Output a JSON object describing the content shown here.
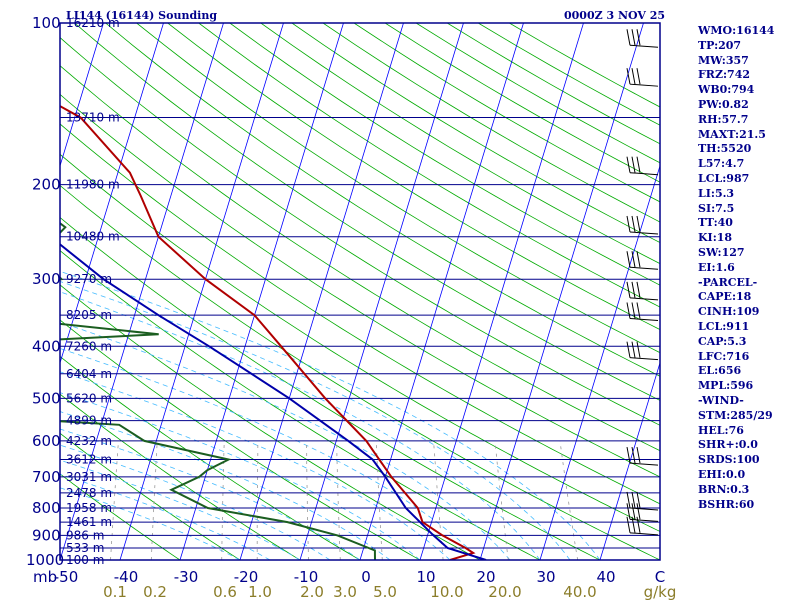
{
  "header": {
    "station": "LI144 (16144) Sounding",
    "time": "0000Z  3 NOV 25"
  },
  "indices": [
    "WMO:16144",
    "TP:207",
    "MW:357",
    "FRZ:742",
    "WB0:794",
    "PW:0.82",
    "RH:57.7",
    "MAXT:21.5",
    "TH:5520",
    "L57:4.7",
    "LCL:987",
    "LI:5.3",
    "SI:7.5",
    "TT:40",
    "KI:18",
    "SW:127",
    "EI:1.6",
    "-PARCEL-",
    "CAPE:18",
    "CINH:109",
    "LCL:911",
    "CAP:5.3",
    "LFC:716",
    "EL:656",
    "MPL:596",
    "-WIND-",
    "STM:285/29",
    "HEL:76",
    "SHR+:0.0",
    "SRDS:100",
    "EHI:0.0",
    "BRN:0.3",
    "BSHR:60"
  ],
  "colors": {
    "isobar": "#00008b",
    "isotherm": "#0000ff",
    "dry_adiabat": "#00aa00",
    "moist_adiabat": "#44bbff",
    "mixing_ratio": "#999999",
    "temperature": "#b00000",
    "dewpoint": "#1b5e20",
    "parcel": "#0000aa"
  },
  "chart_data": {
    "type": "line",
    "diagram": "skew-T log-P",
    "title": "LI144 (16144) Sounding",
    "pressure_levels": [
      100,
      200,
      300,
      400,
      500,
      600,
      700,
      800,
      900,
      1000
    ],
    "pressure_axis_label": "mb",
    "pressure_scale": "log",
    "temperature_ticks": [
      "-50",
      "-40",
      "-30",
      "-20",
      "-10",
      "0",
      "10",
      "20",
      "30",
      "40"
    ],
    "mixing_ratio_labels": [
      "0.1",
      "0.2",
      "0.6",
      "1.0",
      "2.0",
      "3.0",
      "5.0",
      "10.0",
      "20.0",
      "40.0"
    ],
    "mixing_ratio_unit": "g/kg",
    "temperature_unit": "C",
    "height_labels": [
      {
        "p": 100,
        "text": "16210 m"
      },
      {
        "p": 150,
        "text": "13710 m"
      },
      {
        "p": 200,
        "text": "11980 m"
      },
      {
        "p": 250,
        "text": "10480 m"
      },
      {
        "p": 300,
        "text": "9270 m"
      },
      {
        "p": 350,
        "text": "8205 m"
      },
      {
        "p": 400,
        "text": "7260 m"
      },
      {
        "p": 450,
        "text": "6404 m"
      },
      {
        "p": 500,
        "text": "5620 m"
      },
      {
        "p": 550,
        "text": "4899 m"
      },
      {
        "p": 600,
        "text": "4232 m"
      },
      {
        "p": 650,
        "text": "3612 m"
      },
      {
        "p": 700,
        "text": "3031 m"
      },
      {
        "p": 750,
        "text": "2478 m"
      },
      {
        "p": 800,
        "text": "1958 m"
      },
      {
        "p": 850,
        "text": "1461 m"
      },
      {
        "p": 900,
        "text": "986 m"
      },
      {
        "p": 950,
        "text": "533 m"
      },
      {
        "p": 1000,
        "text": "100 m"
      }
    ],
    "series": [
      {
        "key": "temperature",
        "points": [
          [
            100,
            -84
          ],
          [
            115,
            -87
          ],
          [
            125,
            -84
          ],
          [
            150,
            -69
          ],
          [
            190,
            -58
          ],
          [
            210,
            -55
          ],
          [
            250,
            -50
          ],
          [
            300,
            -40
          ],
          [
            350,
            -30
          ],
          [
            400,
            -24
          ],
          [
            500,
            -14
          ],
          [
            600,
            -5
          ],
          [
            700,
            1
          ],
          [
            800,
            7
          ],
          [
            850,
            8.5
          ],
          [
            900,
            12.5
          ],
          [
            950,
            17
          ],
          [
            970,
            18.5
          ],
          [
            1000,
            15
          ]
        ]
      },
      {
        "key": "dewpoint",
        "points": [
          [
            100,
            -102
          ],
          [
            130,
            -106
          ],
          [
            150,
            -107
          ],
          [
            170,
            -104
          ],
          [
            195,
            -77
          ],
          [
            212,
            -74
          ],
          [
            240,
            -66
          ],
          [
            270,
            -69
          ],
          [
            300,
            -64
          ],
          [
            340,
            -87
          ],
          [
            380,
            -45
          ],
          [
            395,
            -74
          ],
          [
            470,
            -86
          ],
          [
            500,
            -68
          ],
          [
            520,
            -96
          ],
          [
            560,
            -47
          ],
          [
            600,
            -42
          ],
          [
            650,
            -27
          ],
          [
            680,
            -30
          ],
          [
            700,
            -31
          ],
          [
            740,
            -35
          ],
          [
            800,
            -28
          ],
          [
            850,
            -14
          ],
          [
            900,
            -5
          ],
          [
            960,
            2
          ],
          [
            1000,
            2.5
          ]
        ]
      },
      {
        "key": "parcel",
        "points": [
          [
            100,
            -104
          ],
          [
            150,
            -93
          ],
          [
            200,
            -80
          ],
          [
            250,
            -68
          ],
          [
            300,
            -57
          ],
          [
            350,
            -46
          ],
          [
            400,
            -36
          ],
          [
            500,
            -20
          ],
          [
            600,
            -8
          ],
          [
            650,
            -3
          ],
          [
            700,
            0
          ],
          [
            800,
            5
          ],
          [
            900,
            11
          ],
          [
            950,
            14
          ],
          [
            1000,
            21
          ]
        ]
      }
    ],
    "wind_pressures": [
      110,
      130,
      190,
      245,
      285,
      325,
      355,
      420,
      660,
      800,
      840,
      890
    ]
  }
}
